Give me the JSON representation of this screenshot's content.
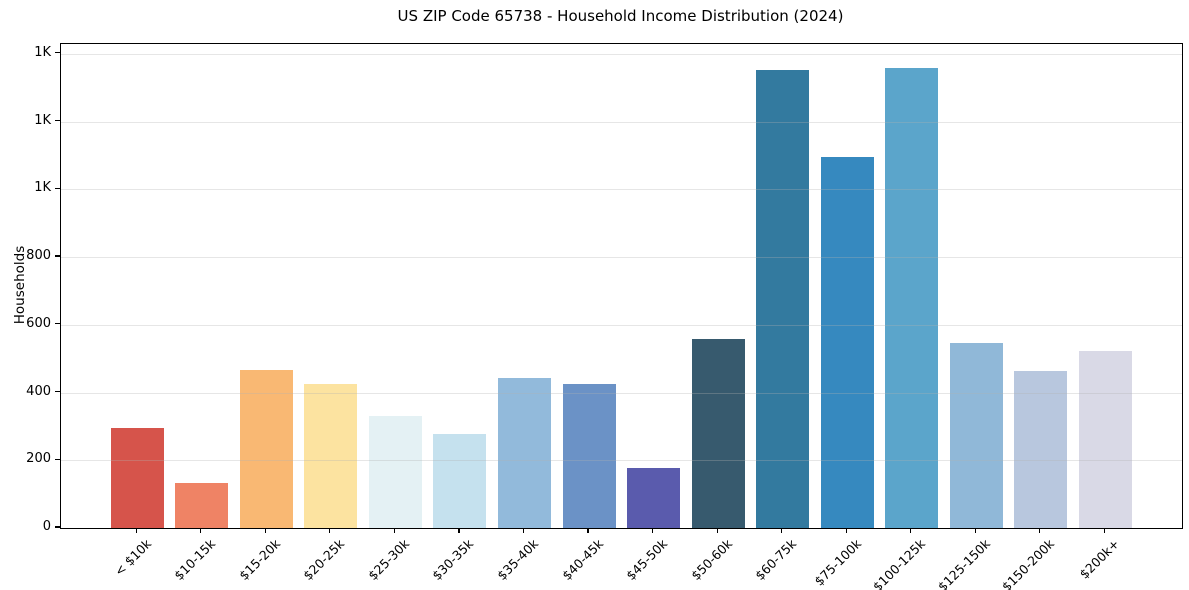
{
  "figure": {
    "background": "#ffffff"
  },
  "chart_data": {
    "type": "bar",
    "title": "US ZIP Code 65738 - Household Income Distribution (2024)",
    "xlabel": "",
    "ylabel": "Households",
    "categories": [
      "< $10k",
      "$10-15k",
      "$15-20k",
      "$20-25k",
      "$25-30k",
      "$30-35k",
      "$35-40k",
      "$40-45k",
      "$45-50k",
      "$50-60k",
      "$60-75k",
      "$75-100k",
      "$100-125k",
      "$125-150k",
      "$150-200k",
      "$200k+"
    ],
    "values": [
      296,
      134,
      466,
      426,
      330,
      277,
      442,
      424,
      178,
      559,
      1352,
      1095,
      1357,
      546,
      463,
      523
    ],
    "bar_colors": [
      "#d6544b",
      "#ef8365",
      "#f9b873",
      "#fce3a0",
      "#e4f1f4",
      "#c5e1ee",
      "#92badb",
      "#6b92c6",
      "#5a5bad",
      "#375a6e",
      "#337a9f",
      "#3689bf",
      "#5ba5cb",
      "#90b8d8",
      "#b8c7de",
      "#d9d9e6"
    ],
    "ylim": [
      0,
      1429
    ],
    "yticks": [
      {
        "value": 0,
        "label": "0"
      },
      {
        "value": 200,
        "label": "200"
      },
      {
        "value": 400,
        "label": "400"
      },
      {
        "value": 600,
        "label": "600"
      },
      {
        "value": 800,
        "label": "800"
      },
      {
        "value": 1000,
        "label": "1K"
      },
      {
        "value": 1200,
        "label": "1K"
      },
      {
        "value": 1400,
        "label": "1K"
      }
    ],
    "grid": "horizontal",
    "grid_above_bars": true,
    "legend": "none",
    "x_tick_rotation": 45
  }
}
